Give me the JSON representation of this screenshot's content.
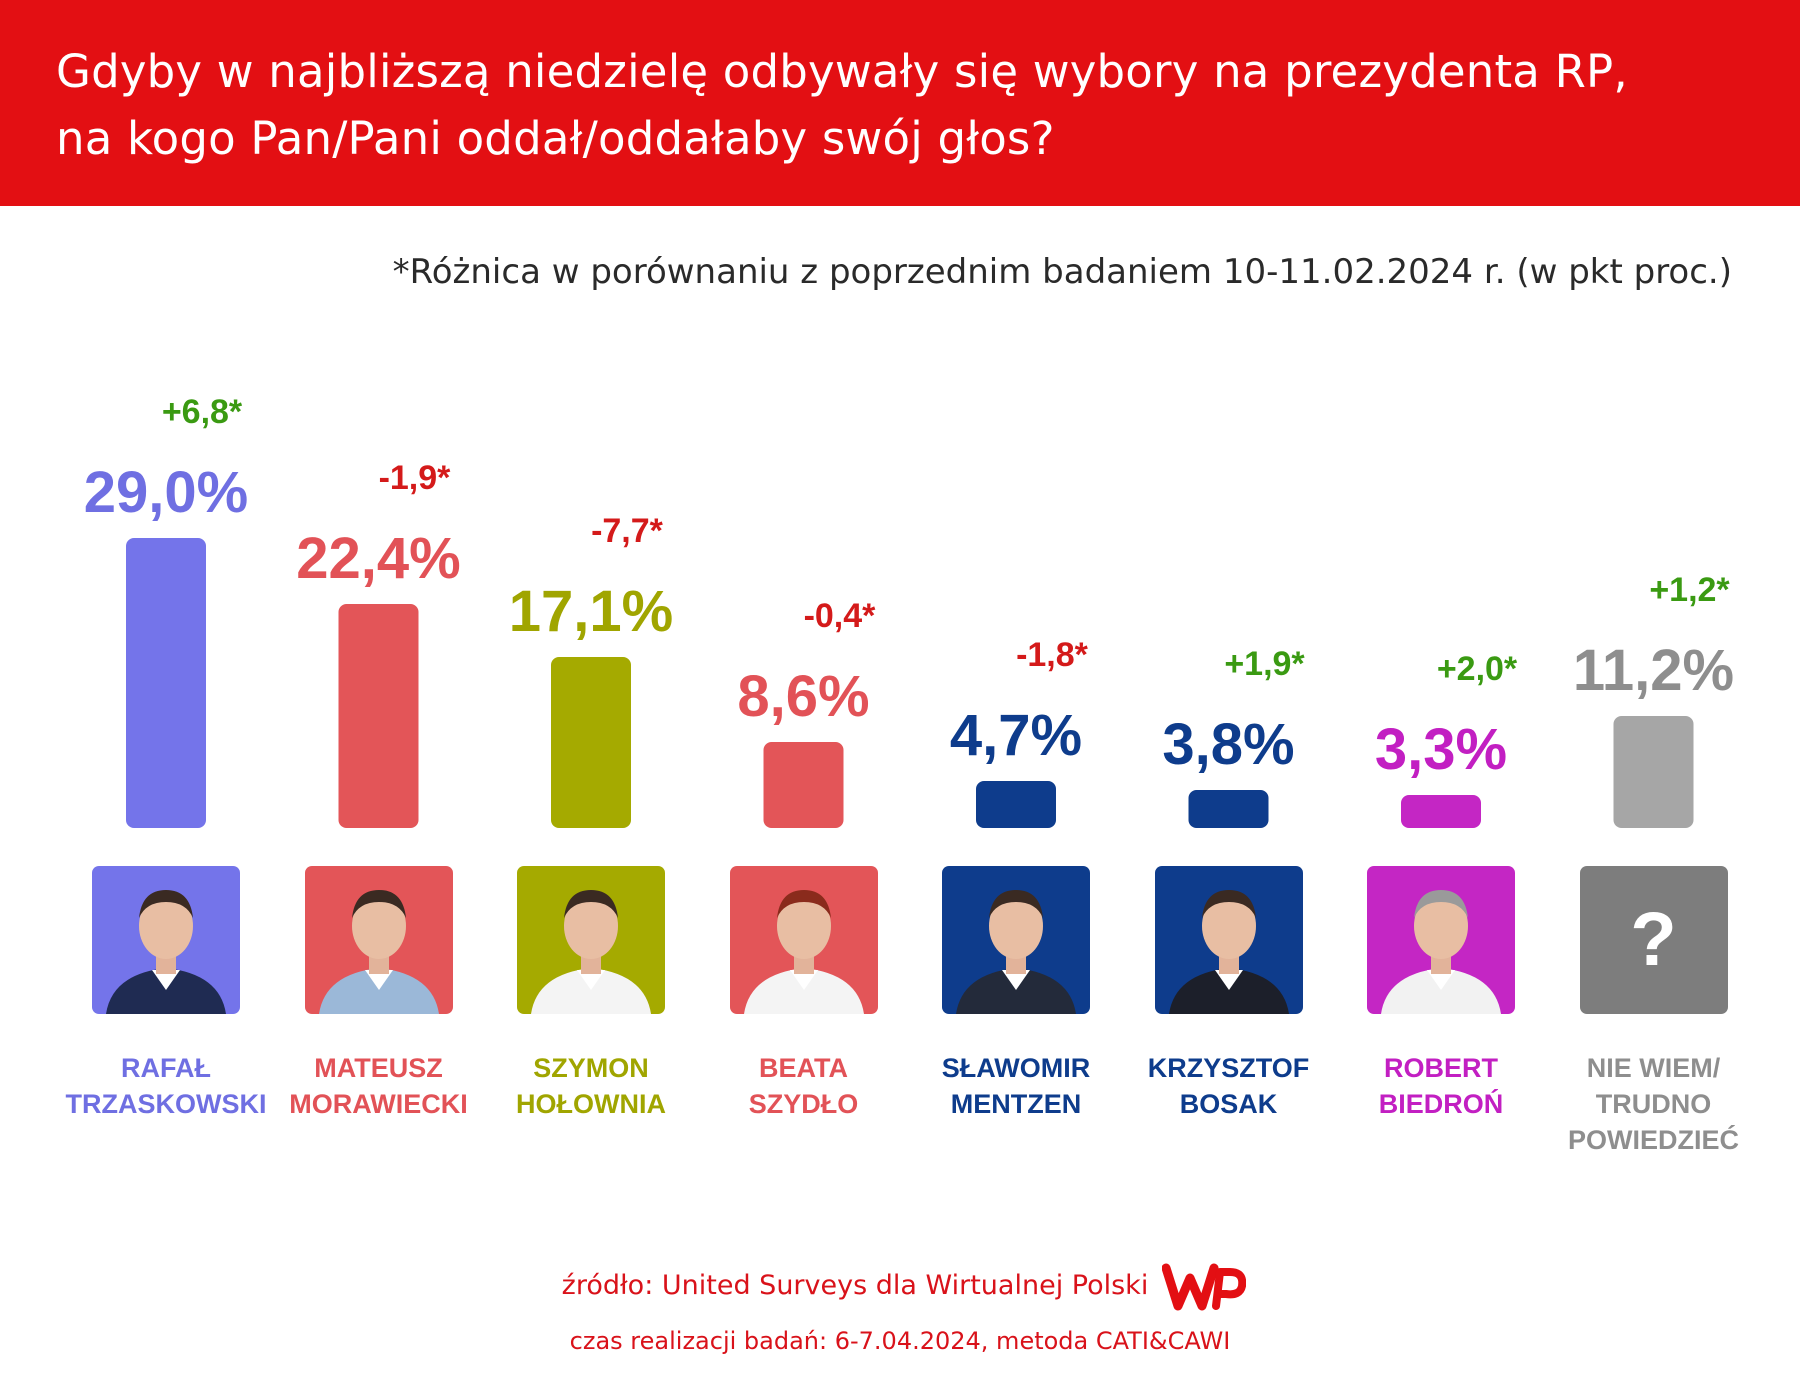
{
  "title": {
    "line1": "Gdyby w najbliższą niedzielę odbywały się wybory na prezydenta RP,",
    "line2": "na kogo Pan/Pani oddał/oddałaby swój głos?"
  },
  "note": "*Różnica w porównaniu z poprzednim badaniem 10-11.02.2024 r. (w pkt proc.)",
  "chart_data": {
    "type": "bar",
    "title": "Gdyby w najbliższą niedzielę odbywały się wybory na prezydenta RP, na kogo Pan/Pani oddał/oddałaby swój głos?",
    "xlabel": "",
    "ylabel": "",
    "ylim": [
      0,
      29
    ],
    "grid": false,
    "categories": [
      "RAFAŁ TRZASKOWSKI",
      "MATEUSZ MORAWIECKI",
      "SZYMON HOŁOWNIA",
      "BEATA SZYDŁO",
      "SŁAWOMIR MENTZEN",
      "KRZYSZTOF BOSAK",
      "ROBERT BIEDROŃ",
      "NIE WIEM/ TRUDNO POWIEDZIEĆ"
    ],
    "values": [
      29.0,
      22.4,
      17.1,
      8.6,
      4.7,
      3.8,
      3.3,
      11.2
    ],
    "value_labels": [
      "29,0%",
      "22,4%",
      "17,1%",
      "8,6%",
      "4,7%",
      "3,8%",
      "3,3%",
      "11,2%"
    ],
    "changes": [
      6.8,
      -1.9,
      -7.7,
      -0.4,
      -1.8,
      1.9,
      2.0,
      1.2
    ],
    "change_labels": [
      "+6,8*",
      "-1,9*",
      "-7,7*",
      "-0,4*",
      "-1,8*",
      "+1,9*",
      "+2,0*",
      "+1,2*"
    ],
    "name_lines": [
      [
        "RAFAŁ",
        "TRZASKOWSKI"
      ],
      [
        "MATEUSZ",
        "MORAWIECKI"
      ],
      [
        "SZYMON",
        "HOŁOWNIA"
      ],
      [
        "BEATA",
        "SZYDŁO"
      ],
      [
        "SŁAWOMIR",
        "MENTZEN"
      ],
      [
        "KRZYSZTOF",
        "BOSAK"
      ],
      [
        "ROBERT",
        "BIEDROŃ"
      ],
      [
        "NIE WIEM/",
        "TRUDNO",
        "POWIEDZIEĆ"
      ]
    ],
    "colors": [
      "#7474ea",
      "#e35558",
      "#a5aa00",
      "#e35558",
      "#0e3c8c",
      "#0e3c8c",
      "#c426c4",
      "#a6a6a6"
    ],
    "label_colors": [
      "#6f6fe2",
      "#e25257",
      "#a0a500",
      "#e25257",
      "#0e3c8c",
      "#0e3c8c",
      "#c21fc2",
      "#8e8e8e"
    ],
    "photo_backgrounds": [
      "#7474ea",
      "#e35558",
      "#a5aa00",
      "#e35558",
      "#0e3c8c",
      "#0e3c8c",
      "#c426c4",
      "#7d7d7d"
    ],
    "photo_icons": [
      "person-photo",
      "person-photo",
      "person-photo",
      "person-photo",
      "person-photo",
      "person-photo",
      "person-photo",
      "question-mark-icon"
    ],
    "question_mark": "?",
    "positive_color": "#3a9a12",
    "negative_color": "#d41a1a"
  },
  "source": "źródło: United Surveys dla Wirtualnej Polski",
  "logo_text": "WP",
  "method": "czas realizacji badań: 6-7.04.2024, metoda CATI&CAWI",
  "colors": {
    "header_bg": "#e30f13",
    "brand_red": "#d9121a"
  }
}
